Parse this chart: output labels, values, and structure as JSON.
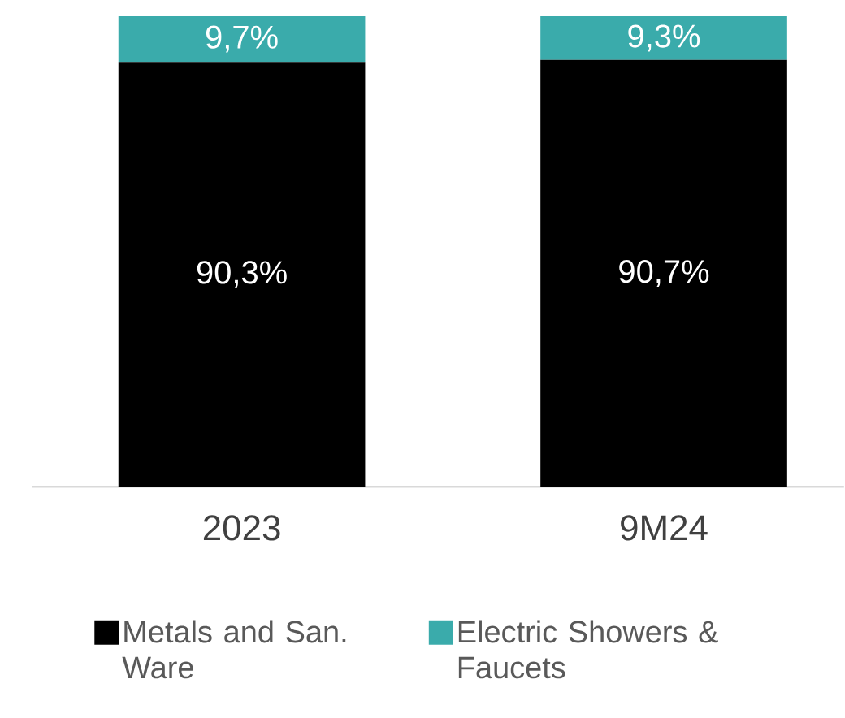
{
  "chart_data": {
    "type": "bar",
    "stacked": true,
    "legend": "bottom",
    "categories": [
      "2023",
      "9M24"
    ],
    "series": [
      {
        "name": "Metals and San. Ware",
        "color": "#000000",
        "values": [
          90.3,
          90.7
        ],
        "value_labels": [
          "90,3%",
          "90,7%"
        ]
      },
      {
        "name": "Electric Showers & Faucets",
        "color": "#3aabab",
        "values": [
          9.7,
          9.3
        ],
        "value_labels": [
          "9,7%",
          "9,3%"
        ]
      }
    ]
  }
}
